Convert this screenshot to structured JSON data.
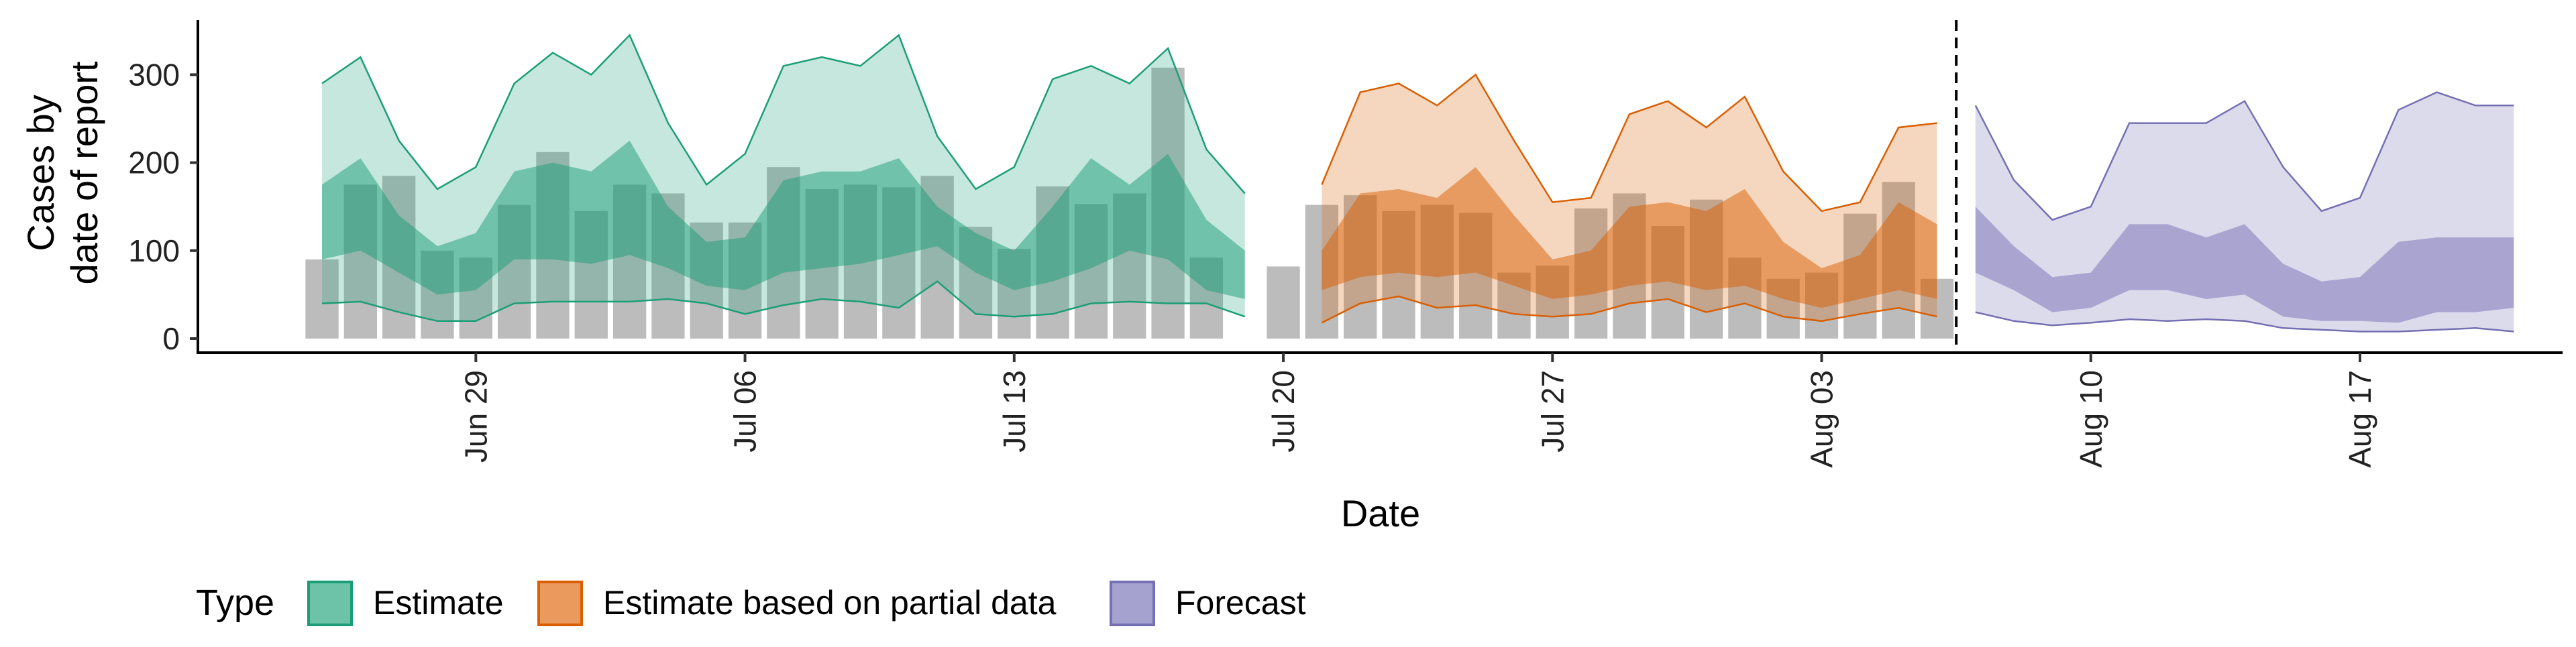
{
  "chart_data": {
    "type": "area",
    "xlabel": "Date",
    "ylabel_lines": [
      "Cases by",
      "date of report"
    ],
    "ylim": [
      0,
      360
    ],
    "yticks": [
      0,
      100,
      200,
      300
    ],
    "xlim": [
      "2022-06-19",
      "2022-08-23"
    ],
    "xticks": [
      {
        "date": "2022-06-29",
        "label": "Jun 29"
      },
      {
        "date": "2022-07-06",
        "label": "Jul 06"
      },
      {
        "date": "2022-07-13",
        "label": "Jul 13"
      },
      {
        "date": "2022-07-20",
        "label": "Jul 20"
      },
      {
        "date": "2022-07-27",
        "label": "Jul 27"
      },
      {
        "date": "2022-08-03",
        "label": "Aug 03"
      },
      {
        "date": "2022-08-10",
        "label": "Aug 10"
      },
      {
        "date": "2022-08-17",
        "label": "Aug 17"
      }
    ],
    "vline_date": "2022-08-06",
    "legend": {
      "title": "Type",
      "position": "bottom",
      "entries": [
        {
          "name": "Estimate",
          "color": "#1b9e77"
        },
        {
          "name": "Estimate based on partial data",
          "color": "#d95f02"
        },
        {
          "name": "Forecast",
          "color": "#7570b3"
        }
      ]
    },
    "bars": {
      "color": "#a6a6a6",
      "dates": [
        "2022-06-25",
        "2022-06-26",
        "2022-06-27",
        "2022-06-28",
        "2022-06-29",
        "2022-06-30",
        "2022-07-01",
        "2022-07-02",
        "2022-07-03",
        "2022-07-04",
        "2022-07-05",
        "2022-07-06",
        "2022-07-07",
        "2022-07-08",
        "2022-07-09",
        "2022-07-10",
        "2022-07-11",
        "2022-07-12",
        "2022-07-13",
        "2022-07-14",
        "2022-07-15",
        "2022-07-16",
        "2022-07-17",
        "2022-07-18",
        "2022-07-19",
        "2022-07-20",
        "2022-07-21",
        "2022-07-22",
        "2022-07-23",
        "2022-07-24",
        "2022-07-25",
        "2022-07-26",
        "2022-07-27",
        "2022-07-28",
        "2022-07-29",
        "2022-07-30",
        "2022-07-31",
        "2022-08-01",
        "2022-08-02",
        "2022-08-03",
        "2022-08-04",
        "2022-08-05",
        "2022-08-06"
      ],
      "values": [
        90,
        175,
        185,
        100,
        92,
        152,
        212,
        145,
        175,
        165,
        132,
        132,
        195,
        170,
        175,
        172,
        185,
        127,
        102,
        173,
        153,
        165,
        308,
        92,
        0,
        82,
        152,
        163,
        145,
        152,
        143,
        75,
        83,
        148,
        165,
        128,
        158,
        92,
        68,
        75,
        142,
        178,
        68
      ]
    },
    "series": [
      {
        "name": "Estimate",
        "color": "#1b9e77",
        "dates": [
          "2022-06-25",
          "2022-06-26",
          "2022-06-27",
          "2022-06-28",
          "2022-06-29",
          "2022-06-30",
          "2022-07-01",
          "2022-07-02",
          "2022-07-03",
          "2022-07-04",
          "2022-07-05",
          "2022-07-06",
          "2022-07-07",
          "2022-07-08",
          "2022-07-09",
          "2022-07-10",
          "2022-07-11",
          "2022-07-12",
          "2022-07-13",
          "2022-07-14",
          "2022-07-15",
          "2022-07-16",
          "2022-07-17",
          "2022-07-18",
          "2022-07-19"
        ],
        "lower90": [
          40,
          42,
          30,
          20,
          20,
          40,
          42,
          42,
          42,
          45,
          40,
          28,
          38,
          45,
          42,
          35,
          65,
          28,
          25,
          28,
          40,
          42,
          40,
          40,
          25
        ],
        "lower50": [
          90,
          100,
          75,
          50,
          55,
          90,
          90,
          85,
          95,
          80,
          60,
          55,
          75,
          80,
          85,
          95,
          105,
          75,
          55,
          65,
          80,
          100,
          90,
          55,
          45
        ],
        "upper50": [
          175,
          205,
          140,
          105,
          120,
          190,
          200,
          190,
          225,
          150,
          110,
          115,
          180,
          190,
          190,
          205,
          150,
          120,
          100,
          150,
          205,
          175,
          210,
          135,
          100
        ],
        "upper90": [
          290,
          320,
          225,
          170,
          195,
          290,
          325,
          300,
          345,
          245,
          175,
          210,
          310,
          320,
          310,
          345,
          230,
          170,
          195,
          295,
          310,
          290,
          330,
          215,
          165
        ]
      },
      {
        "name": "Estimate based on partial data",
        "color": "#d95f02",
        "dates": [
          "2022-07-21",
          "2022-07-22",
          "2022-07-23",
          "2022-07-24",
          "2022-07-25",
          "2022-07-26",
          "2022-07-27",
          "2022-07-28",
          "2022-07-29",
          "2022-07-30",
          "2022-07-31",
          "2022-08-01",
          "2022-08-02",
          "2022-08-03",
          "2022-08-04",
          "2022-08-05",
          "2022-08-06"
        ],
        "lower90": [
          18,
          40,
          48,
          35,
          38,
          28,
          25,
          28,
          40,
          45,
          30,
          40,
          25,
          20,
          28,
          35,
          25
        ],
        "lower50": [
          55,
          70,
          75,
          70,
          75,
          60,
          45,
          50,
          60,
          65,
          55,
          60,
          45,
          35,
          45,
          55,
          45
        ],
        "upper50": [
          100,
          165,
          170,
          160,
          195,
          140,
          90,
          100,
          150,
          155,
          145,
          170,
          110,
          80,
          95,
          155,
          130
        ],
        "upper90": [
          175,
          280,
          290,
          265,
          300,
          225,
          155,
          160,
          255,
          270,
          240,
          275,
          190,
          145,
          155,
          240,
          245
        ]
      },
      {
        "name": "Forecast",
        "color": "#7570b3",
        "dates": [
          "2022-08-07",
          "2022-08-08",
          "2022-08-09",
          "2022-08-10",
          "2022-08-11",
          "2022-08-12",
          "2022-08-13",
          "2022-08-14",
          "2022-08-15",
          "2022-08-16",
          "2022-08-17",
          "2022-08-18",
          "2022-08-19",
          "2022-08-20",
          "2022-08-21"
        ],
        "lower90": [
          30,
          20,
          15,
          18,
          22,
          20,
          22,
          20,
          12,
          10,
          8,
          8,
          10,
          12,
          8
        ],
        "lower50": [
          75,
          55,
          30,
          35,
          55,
          55,
          45,
          50,
          25,
          20,
          20,
          18,
          30,
          30,
          35
        ],
        "upper50": [
          150,
          105,
          70,
          75,
          130,
          130,
          115,
          130,
          85,
          65,
          70,
          110,
          115,
          115,
          115
        ],
        "upper90": [
          265,
          180,
          135,
          150,
          245,
          245,
          245,
          270,
          195,
          145,
          160,
          260,
          280,
          265,
          265
        ]
      }
    ]
  }
}
